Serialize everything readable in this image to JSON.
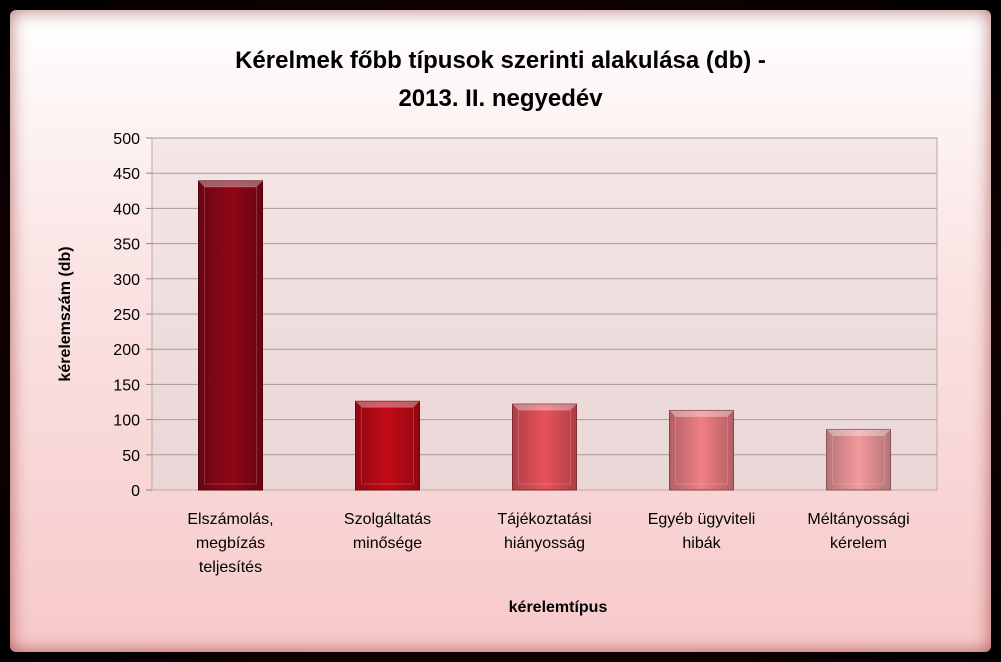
{
  "chart_data": {
    "type": "bar",
    "title_line1": "Kérelmek főbb típusok szerinti alakulása (db) -",
    "title_line2": "2013. II. negyedév",
    "xlabel": "kérelemtípus",
    "ylabel": "kérelemszám (db)",
    "categories": [
      [
        "Elszámolás,",
        "megbízás",
        "teljesítés"
      ],
      [
        "Szolgáltatás",
        "minősége"
      ],
      [
        "Tájékoztatási",
        "hiányosság"
      ],
      [
        "Egyéb ügyviteli",
        "hibák"
      ],
      [
        "Méltányossági",
        "kérelem"
      ]
    ],
    "values": [
      439,
      126,
      122,
      113,
      86
    ],
    "ylim": [
      0,
      500
    ],
    "yticks": [
      "0",
      "50",
      "100",
      "150",
      "200",
      "250",
      "300",
      "350",
      "400",
      "450",
      "500"
    ],
    "grid": true,
    "colors": [
      "#8e0616",
      "#c30a16",
      "#e8525a",
      "#ef7f85",
      "#f29a9e"
    ]
  }
}
